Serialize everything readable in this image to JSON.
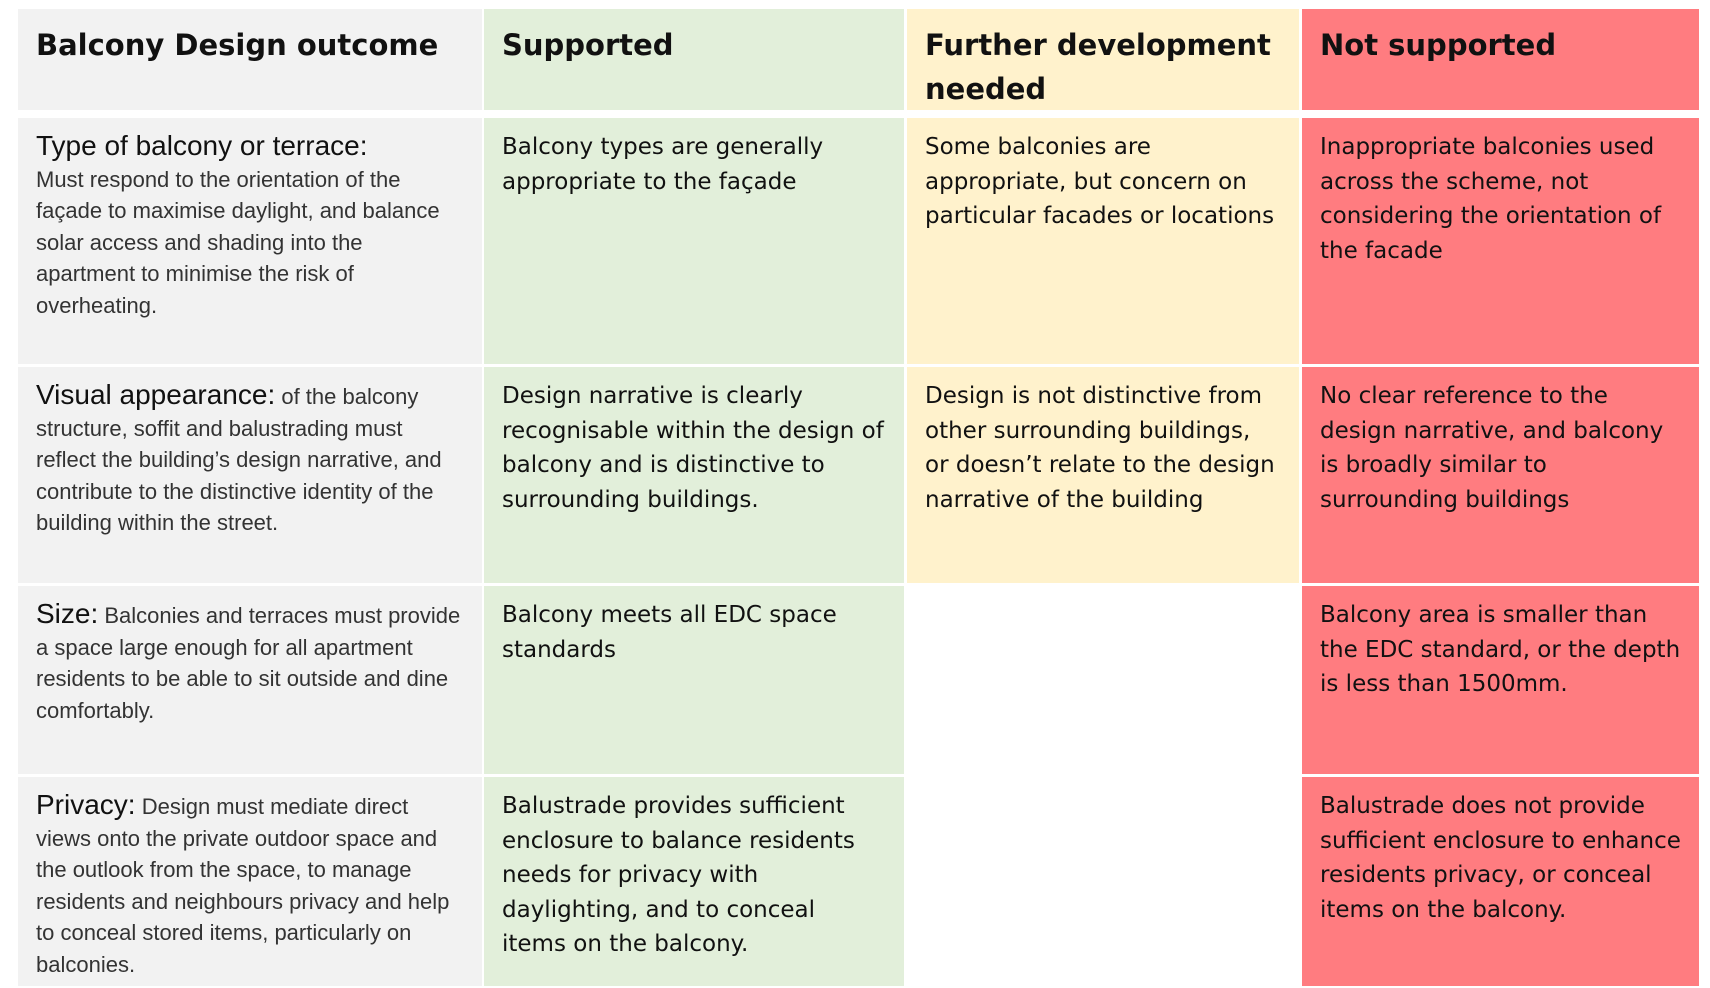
{
  "table": {
    "header": [
      "Balcony Design outcome",
      "Supported",
      "Further development needed",
      "Not supported"
    ],
    "rows": [
      {
        "title": "Type of balcony or terrace:",
        "description": "Must respond to the orientation of the façade to maximise daylight, and balance solar access and shading into the apartment to minimise the risk of overheating.",
        "cells": [
          "Balcony types  are generally appropriate  to the façade",
          "Some balconies are appropriate, but concern on particular facades or locations",
          "Inappropriate balconies used across the scheme, not considering the orientation of the facade"
        ]
      },
      {
        "title": "Visual appearance:",
        "description": "of the balcony structure, soffit and balustrading must reflect the building’s design narrative, and contribute to the distinctive identity of the building within the street.",
        "cells": [
          "Design narrative is clearly recognisable within the design of balcony and is distinctive to surrounding buildings.",
          "Design is not distinctive from other surrounding buildings, or doesn’t relate to the design narrative of the building",
          "No clear reference to the design narrative, and balcony is broadly similar to surrounding buildings"
        ]
      },
      {
        "title": "Size:",
        "description": "Balconies and terraces must provide a space large enough for all apartment residents to be able to sit outside and dine comfortably.",
        "cells": [
          "Balcony meets all EDC space standards",
          null,
          "Balcony area is smaller than the EDC standard, or the depth is less than 1500mm."
        ]
      },
      {
        "title": "Privacy:",
        "description": "Design must mediate direct views onto the private outdoor space and the outlook from the space, to manage residents and neighbours privacy and help to conceal stored items, particularly on balconies.",
        "cells": [
          "Balustrade provides sufficient enclosure to balance residents needs for privacy with daylighting, and to conceal items on the balcony.",
          null,
          "Balustrade does not provide sufficient enclosure to enhance residents privacy, or conceal items on the balcony."
        ]
      }
    ]
  }
}
